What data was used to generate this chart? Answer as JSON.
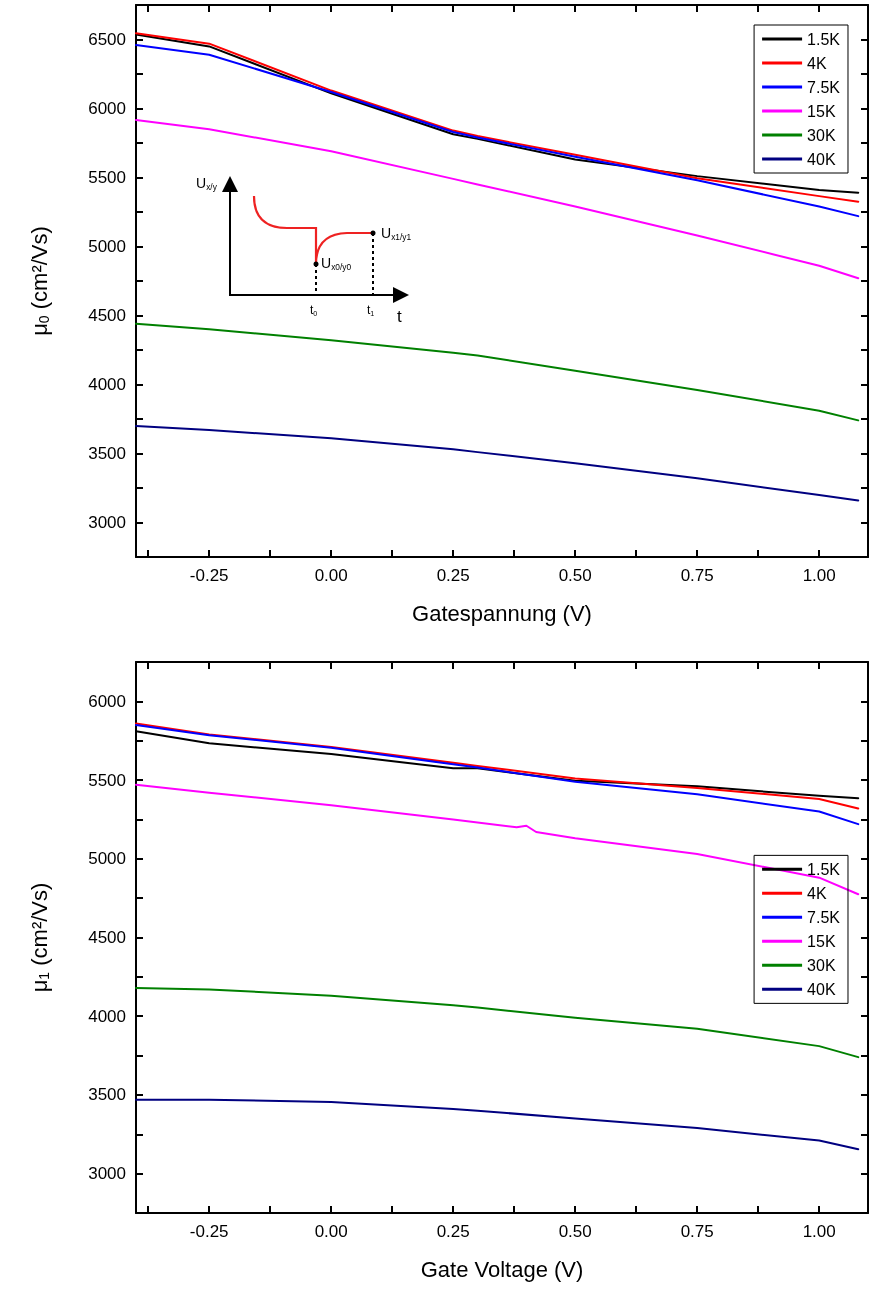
{
  "chart_data": [
    {
      "type": "line",
      "xlabel": "Gatespannung (V)",
      "ylabel": "μ$_{0}$ (cm²/Vs)",
      "legend": "top right",
      "marker": "none",
      "xlim": [
        -0.4,
        1.1
      ],
      "ylim": [
        2750,
        6750
      ],
      "xticks": [
        {
          "value": -0.375,
          "label": null
        },
        {
          "value": -0.25,
          "label": "-0.25"
        },
        {
          "value": -0.125,
          "label": null
        },
        {
          "value": 0,
          "label": "0.00"
        },
        {
          "value": 0.125,
          "label": null
        },
        {
          "value": 0.25,
          "label": "0.25"
        },
        {
          "value": 0.375,
          "label": null
        },
        {
          "value": 0.5,
          "label": "0.50"
        },
        {
          "value": 0.625,
          "label": null
        },
        {
          "value": 0.75,
          "label": "0.75"
        },
        {
          "value": 0.875,
          "label": null
        },
        {
          "value": 1,
          "label": "1.00"
        }
      ],
      "yticks": [
        3000,
        {
          "value": 3250,
          "label": null
        },
        3500,
        {
          "value": 3750,
          "label": null
        },
        4000,
        {
          "value": 4250,
          "label": null
        },
        4500,
        {
          "value": 4750,
          "label": null
        },
        5000,
        {
          "value": 5250,
          "label": null
        },
        5500,
        {
          "value": 5750,
          "label": null
        },
        6000,
        {
          "value": 6250,
          "label": null
        },
        6500
      ],
      "x": [
        -0.4,
        -0.25,
        0,
        0.25,
        0.3,
        0.5,
        0.75,
        1,
        1.08
      ],
      "annotations": [
        "U$_{x/y}$",
        "U$_{x0/y0}$",
        "U$_{x1/y1}$",
        "t$_{0}$",
        "t$_{1}$",
        "t"
      ],
      "series": [
        {
          "name": "1.5K",
          "color": "#000000",
          "values": [
            6536,
            6450,
            6110,
            5813,
            5780,
            5630,
            5510,
            5410,
            5390
          ]
        },
        {
          "name": "4K",
          "color": "#ff0000",
          "values": [
            6545,
            6470,
            6130,
            5840,
            5800,
            5665,
            5495,
            5365,
            5325
          ]
        },
        {
          "name": "7.5K",
          "color": "#0000ff",
          "values": [
            6460,
            6390,
            6120,
            5830,
            5790,
            5650,
            5480,
            5290,
            5220
          ]
        },
        {
          "name": "15K",
          "color": "#ff00ff",
          "values": [
            5917,
            5850,
            5690,
            5490,
            5450,
            5290,
            5080,
            4860,
            4770
          ]
        },
        {
          "name": "30K",
          "color": "#008000",
          "values": [
            4440,
            4400,
            4320,
            4230,
            4210,
            4100,
            3960,
            3810,
            3740
          ]
        },
        {
          "name": "40K",
          "color": "#000080",
          "values": [
            3700,
            3670,
            3610,
            3530,
            3510,
            3430,
            3320,
            3200,
            3160
          ]
        }
      ]
    },
    {
      "type": "line",
      "xlabel": "Gate Voltage (V)",
      "ylabel": "μ$_{1}$ (cm²/Vs)",
      "legend": "right",
      "marker": "none",
      "xlim": [
        -0.4,
        1.1
      ],
      "ylim": [
        2750,
        6250
      ],
      "xticks": [
        {
          "value": -0.375,
          "label": null
        },
        {
          "value": -0.25,
          "label": "-0.25"
        },
        {
          "value": -0.125,
          "label": null
        },
        {
          "value": 0,
          "label": "0.00"
        },
        {
          "value": 0.125,
          "label": null
        },
        {
          "value": 0.25,
          "label": "0.25"
        },
        {
          "value": 0.375,
          "label": null
        },
        {
          "value": 0.5,
          "label": "0.50"
        },
        {
          "value": 0.625,
          "label": null
        },
        {
          "value": 0.75,
          "label": "0.75"
        },
        {
          "value": 0.875,
          "label": null
        },
        {
          "value": 1,
          "label": "1.00"
        }
      ],
      "yticks": [
        3000,
        {
          "value": 3250,
          "label": null
        },
        3500,
        {
          "value": 3750,
          "label": null
        },
        4000,
        {
          "value": 4250,
          "label": null
        },
        4500,
        {
          "value": 4750,
          "label": null
        },
        5000,
        {
          "value": 5250,
          "label": null
        },
        5500,
        {
          "value": 5750,
          "label": null
        },
        6000
      ],
      "x": [
        -0.4,
        -0.25,
        0,
        0.25,
        0.3,
        0.5,
        0.75,
        1,
        1.08
      ],
      "series": [
        {
          "name": "1.5K",
          "color": "#000000",
          "values": [
            5810,
            5734,
            5665,
            5575,
            5575,
            5495,
            5460,
            5400,
            5385
          ]
        },
        {
          "name": "4K",
          "color": "#ff0000",
          "values": [
            5860,
            5790,
            5710,
            5610,
            5590,
            5510,
            5450,
            5380,
            5320
          ]
        },
        {
          "name": "7.5K",
          "color": "#0000ff",
          "values": [
            5850,
            5785,
            5705,
            5600,
            5580,
            5490,
            5410,
            5300,
            5220
          ]
        },
        {
          "name": "15K",
          "color": "#ff00ff",
          "x": [
            -0.4,
            -0.25,
            0,
            0.25,
            0.38,
            0.4,
            0.42,
            0.5,
            0.75,
            1,
            1.08
          ],
          "values": [
            5470,
            5420,
            5340,
            5250,
            5200,
            5210,
            5170,
            5130,
            5030,
            4880,
            4775
          ]
        },
        {
          "name": "30K",
          "color": "#008000",
          "values": [
            4180,
            4170,
            4130,
            4070,
            4055,
            3990,
            3920,
            3810,
            3740
          ]
        },
        {
          "name": "40K",
          "color": "#000080",
          "values": [
            3470,
            3470,
            3455,
            3410,
            3400,
            3350,
            3290,
            3210,
            3155
          ]
        }
      ]
    }
  ]
}
